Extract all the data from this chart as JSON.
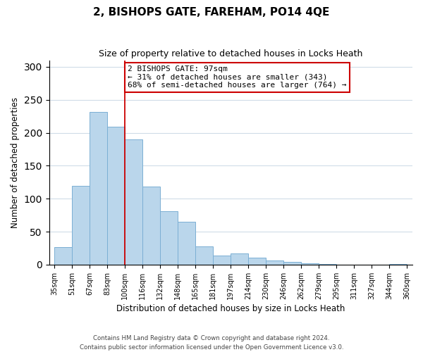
{
  "title": "2, BISHOPS GATE, FAREHAM, PO14 4QE",
  "subtitle": "Size of property relative to detached houses in Locks Heath",
  "xlabel": "Distribution of detached houses by size in Locks Heath",
  "ylabel": "Number of detached properties",
  "bar_labels": [
    "35sqm",
    "51sqm",
    "67sqm",
    "83sqm",
    "100sqm",
    "116sqm",
    "132sqm",
    "148sqm",
    "165sqm",
    "181sqm",
    "197sqm",
    "214sqm",
    "230sqm",
    "246sqm",
    "262sqm",
    "279sqm",
    "295sqm",
    "311sqm",
    "327sqm",
    "344sqm",
    "360sqm"
  ],
  "bar_values": [
    27,
    120,
    232,
    209,
    190,
    118,
    81,
    65,
    28,
    14,
    17,
    11,
    6,
    4,
    2,
    1,
    0,
    0,
    0,
    1
  ],
  "bar_color": "#bad6eb",
  "bar_edge_color": "#7bafd4",
  "vline_x_index": 4,
  "vline_color": "#cc0000",
  "annotation_title": "2 BISHOPS GATE: 97sqm",
  "annotation_line1": "← 31% of detached houses are smaller (343)",
  "annotation_line2": "68% of semi-detached houses are larger (764) →",
  "annotation_box_facecolor": "#ffffff",
  "annotation_box_edgecolor": "#cc0000",
  "ylim": [
    0,
    310
  ],
  "yticks": [
    0,
    50,
    100,
    150,
    200,
    250,
    300
  ],
  "grid_color": "#d0dce8",
  "footnote1": "Contains HM Land Registry data © Crown copyright and database right 2024.",
  "footnote2": "Contains public sector information licensed under the Open Government Licence v3.0."
}
